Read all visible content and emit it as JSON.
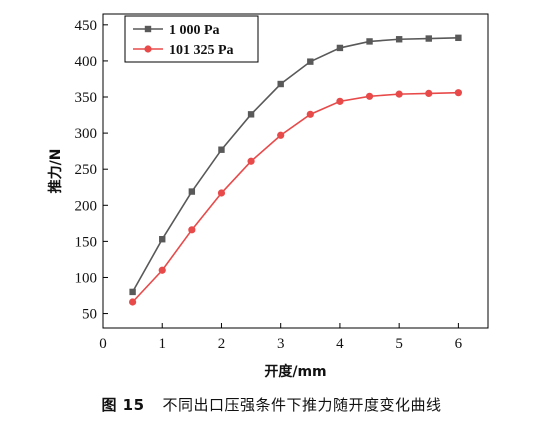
{
  "chart_data": {
    "type": "line",
    "xlabel": "开度/mm",
    "ylabel": "推力/N",
    "xlim": [
      0,
      6.5
    ],
    "ylim": [
      30,
      465
    ],
    "xticks": [
      0,
      1,
      2,
      3,
      4,
      5,
      6
    ],
    "yticks": [
      50,
      100,
      150,
      200,
      250,
      300,
      350,
      400,
      450
    ],
    "legend_position": "top-left",
    "grid": false,
    "x": [
      0.5,
      1,
      1.5,
      2,
      2.5,
      3,
      3.5,
      4,
      4.5,
      5,
      5.5,
      6
    ],
    "series": [
      {
        "name": "1 000 Pa",
        "color": "#595959",
        "marker": "square",
        "values": [
          80,
          153,
          219,
          277,
          326,
          368,
          399,
          418,
          427,
          430,
          431,
          432
        ]
      },
      {
        "name": "101 325 Pa",
        "color": "#e84a4a",
        "marker": "circle",
        "values": [
          66,
          110,
          166,
          217,
          261,
          297,
          326,
          344,
          351,
          354,
          355,
          356
        ]
      }
    ]
  },
  "caption": {
    "figure_number": "图 15",
    "text": "不同出口压强条件下推力随开度变化曲线"
  }
}
